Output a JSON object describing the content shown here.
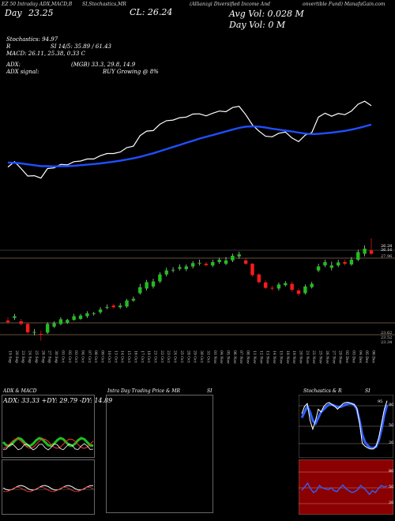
{
  "header": {
    "line1_a": "EZ 50 Intraday ADX,MACD,B",
    "line1_b": "SI,Stochastics,MR",
    "line1_c": "(Allianzgi Diversified Income And",
    "line1_d": "onvertible  Fund) ManafaGain.com",
    "day_label": "Day",
    "day_value": "23.25",
    "cl_value": "CL: 26.24",
    "avg_vol": "Avg Vol: 0.028  M",
    "day_vol": "Day Vol: 0  M"
  },
  "stats": {
    "stoch_label": "Stochastics: 94.97",
    "r_label": "R",
    "si_label": "SI 14/5: 35.89 / 61.43",
    "macd_label": "MACD: 26.11,  25.38,  0.33  C",
    "adx_label": "ADX:",
    "adx_values": "(MGB) 33.3,  29.8,  14.9",
    "adx_signal_label": "ADX  signal:",
    "adx_signal_value": "BUY Growing @ 8%"
  },
  "colors": {
    "bull": "#1fbf1f",
    "bear": "#ff1a1a",
    "ma": "#1f4fff",
    "price_line": "#ffffff",
    "level_line": "#c8a27a",
    "panel_red": "#8b0000",
    "stoch_blue": "#3060ff"
  },
  "price_levels": {
    "upper_a": "26.28",
    "upper_b": "26.16",
    "mid": "27.96",
    "lower_a": "23.62",
    "lower_b": "23.52",
    "lower_c": "23.34"
  },
  "bottom_panels": {
    "left_title": "ADX  & MACD",
    "left_readout": "ADX: 33.33  +DY: 29.79  -DY: 14.89",
    "center_title": "Intra  Day  Trading  Price   & MR",
    "center_si": "SI",
    "right_title": "Stochastics & R",
    "right_si": "SI",
    "stoch_ticks": [
      "80",
      "50",
      "20"
    ],
    "rsi_ticks": [
      "80",
      "50",
      "20"
    ],
    "stoch_marker": "95",
    "rsi_marker": "50"
  },
  "chart_data": {
    "type": "candlestick",
    "dates": [
      "19 Sep",
      "20 Sep",
      "23 Sep",
      "24 Sep",
      "25 Sep",
      "26 Sep",
      "27 Sep",
      "30 Sep",
      "01 Oct",
      "02 Oct",
      "03 Oct",
      "04 Oct",
      "07 Oct",
      "08 Oct",
      "09 Oct",
      "10 Oct",
      "11 Oct",
      "14 Oct",
      "15 Oct",
      "16 Oct",
      "17 Oct",
      "18 Oct",
      "21 Oct",
      "22 Oct",
      "23 Oct",
      "24 Oct",
      "25 Oct",
      "28 Oct",
      "29 Oct",
      "30 Oct",
      "31 Oct",
      "01 Nov",
      "04 Nov",
      "05 Nov",
      "06 Nov",
      "07 Nov",
      "08 Nov",
      "11 Nov",
      "12 Nov",
      "13 Nov",
      "14 Nov",
      "15 Nov",
      "18 Nov",
      "19 Nov",
      "20 Nov",
      "21 Nov",
      "22 Nov",
      "25 Nov",
      "26 Nov",
      "27 Nov",
      "29 Nov",
      "02 Dec",
      "03 Dec",
      "04 Dec",
      "05 Dec",
      "06 Dec"
    ],
    "open": [
      23.8,
      23.88,
      23.78,
      23.7,
      23.45,
      23.4,
      23.44,
      23.62,
      23.7,
      23.74,
      23.82,
      23.85,
      23.93,
      24.0,
      24.05,
      24.2,
      24.25,
      24.2,
      24.22,
      24.4,
      24.62,
      24.76,
      24.82,
      24.97,
      25.18,
      25.3,
      25.35,
      25.34,
      25.42,
      25.52,
      25.5,
      25.45,
      25.55,
      25.5,
      25.6,
      25.72,
      25.6,
      25.5,
      25.18,
      24.94,
      24.78,
      24.76,
      24.86,
      24.9,
      24.7,
      24.62,
      24.8,
      25.3,
      25.45,
      25.38,
      25.45,
      25.55,
      25.48,
      25.62,
      25.8,
      25.9
    ],
    "close": [
      23.75,
      23.93,
      23.7,
      23.45,
      23.46,
      23.38,
      23.7,
      23.72,
      23.84,
      23.82,
      23.93,
      23.95,
      24.02,
      24.02,
      24.13,
      24.2,
      24.2,
      24.25,
      24.4,
      24.45,
      24.8,
      24.95,
      24.97,
      25.18,
      25.3,
      25.32,
      25.4,
      25.42,
      25.52,
      25.53,
      25.46,
      25.55,
      25.62,
      25.6,
      25.74,
      25.78,
      25.5,
      25.16,
      24.95,
      24.78,
      24.76,
      24.88,
      24.92,
      24.72,
      24.6,
      24.82,
      24.9,
      25.42,
      25.55,
      25.45,
      25.54,
      25.5,
      25.62,
      25.85,
      25.95,
      25.8
    ],
    "high": [
      23.9,
      24.0,
      23.85,
      23.75,
      23.55,
      23.5,
      23.75,
      23.78,
      23.9,
      23.85,
      24.0,
      24.0,
      24.08,
      24.06,
      24.2,
      24.28,
      24.3,
      24.32,
      24.45,
      24.52,
      24.9,
      25.02,
      25.05,
      25.25,
      25.38,
      25.4,
      25.48,
      25.48,
      25.58,
      25.62,
      25.55,
      25.62,
      25.68,
      25.7,
      25.8,
      25.86,
      25.66,
      25.52,
      25.22,
      25.0,
      24.84,
      24.94,
      24.98,
      24.96,
      24.76,
      24.88,
      24.96,
      25.5,
      25.62,
      25.56,
      25.62,
      25.62,
      25.7,
      25.92,
      26.05,
      26.26
    ],
    "low": [
      23.7,
      23.82,
      23.65,
      23.4,
      23.36,
      23.2,
      23.4,
      23.58,
      23.66,
      23.7,
      23.8,
      23.82,
      23.88,
      23.95,
      24.0,
      24.14,
      24.15,
      24.15,
      24.18,
      24.36,
      24.58,
      24.7,
      24.76,
      24.92,
      25.12,
      25.24,
      25.3,
      25.28,
      25.36,
      25.45,
      25.42,
      25.4,
      25.5,
      25.46,
      25.55,
      25.65,
      25.46,
      25.12,
      24.9,
      24.74,
      24.7,
      24.7,
      24.82,
      24.66,
      24.54,
      24.58,
      24.76,
      25.25,
      25.4,
      25.3,
      25.4,
      25.45,
      25.44,
      25.58,
      25.72,
      25.76
    ],
    "ma": [
      23.9,
      23.89,
      23.87,
      23.84,
      23.81,
      23.78,
      23.78,
      23.77,
      23.78,
      23.78,
      23.79,
      23.81,
      23.83,
      23.85,
      23.87,
      23.9,
      23.93,
      23.96,
      24.0,
      24.04,
      24.09,
      24.15,
      24.21,
      24.28,
      24.35,
      24.42,
      24.49,
      24.56,
      24.63,
      24.7,
      24.76,
      24.82,
      24.88,
      24.94,
      25.0,
      25.06,
      25.1,
      25.11,
      25.1,
      25.07,
      25.03,
      25.0,
      24.97,
      24.94,
      24.9,
      24.87,
      24.85,
      24.86,
      24.88,
      24.9,
      24.93,
      24.96,
      25.0,
      25.05,
      25.11,
      25.17
    ],
    "ylim": [
      23.0,
      26.4
    ],
    "stochastic": {
      "k": [
        72,
        85,
        90,
        60,
        45,
        60,
        80,
        75,
        85,
        90,
        92,
        88,
        85,
        80,
        85,
        90,
        92,
        92,
        90,
        88,
        82,
        55,
        20,
        15,
        12,
        10,
        10,
        15,
        30,
        55,
        80,
        95
      ],
      "d": [
        65,
        75,
        85,
        75,
        60,
        55,
        65,
        75,
        80,
        85,
        88,
        88,
        86,
        84,
        84,
        86,
        88,
        90,
        90,
        88,
        80,
        60,
        35,
        22,
        16,
        12,
        12,
        14,
        25,
        45,
        70,
        88
      ]
    },
    "rsi": [
      45,
      52,
      60,
      48,
      40,
      44,
      55,
      50,
      48,
      46,
      50,
      44,
      42,
      50,
      56,
      48,
      44,
      40,
      42,
      46,
      55,
      50,
      44,
      36,
      44,
      40,
      48,
      55,
      52,
      54
    ]
  }
}
